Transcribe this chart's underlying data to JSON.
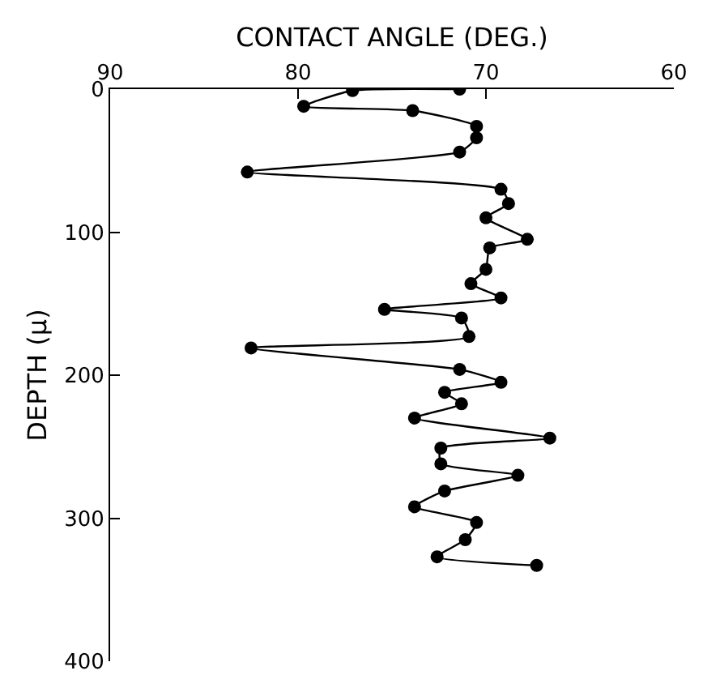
{
  "chart_data": {
    "type": "line",
    "xlabel": "CONTACT ANGLE (DEG.)",
    "ylabel": "DEPTH (μ)",
    "xlim": [
      90,
      60
    ],
    "xticks": [
      90,
      80,
      70,
      60
    ],
    "ylim": [
      400,
      0
    ],
    "yticks": [
      0,
      100,
      200,
      300,
      400
    ],
    "legend": false,
    "marker": "circle",
    "line_style": "solid",
    "series": [
      {
        "color": "#000000",
        "x": [
          71.4,
          77.1,
          79.7,
          73.9,
          70.5,
          70.5,
          71.4,
          82.7,
          69.2,
          68.8,
          70.0,
          67.8,
          69.8,
          70.0,
          70.8,
          69.2,
          75.4,
          71.3,
          70.9,
          82.5,
          71.4,
          69.2,
          72.2,
          71.3,
          73.8,
          66.6,
          72.4,
          72.4,
          68.3,
          72.2,
          73.8,
          70.5,
          71.1,
          72.6,
          67.3
        ],
        "values": [
          0,
          1,
          12,
          15,
          26,
          34,
          44,
          58,
          70,
          80,
          90,
          105,
          111,
          126,
          136,
          146,
          154,
          160,
          173,
          181,
          196,
          205,
          212,
          220,
          230,
          244,
          251,
          262,
          270,
          281,
          292,
          303,
          315,
          327,
          333
        ]
      }
    ]
  }
}
